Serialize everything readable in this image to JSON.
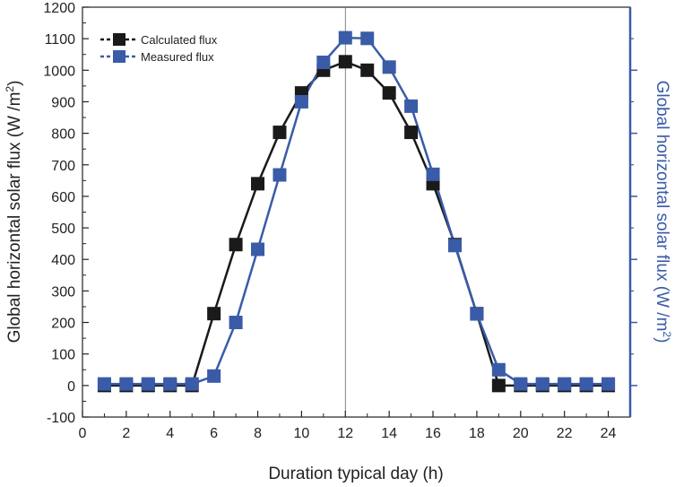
{
  "chart_data": {
    "type": "line",
    "title": "",
    "xlabel": "Duration typical day (h)",
    "ylabel": "Global horizontal solar flux (W /m",
    "ylabel_sup": "2",
    "ylabel_close": ")",
    "y2label": "Global horizontal solar flux (W /m",
    "y2label_sup": "2",
    "y2label_close": ")",
    "xlim": [
      0,
      25
    ],
    "ylim": [
      -100,
      1200
    ],
    "x_ticks": [
      "0",
      "2",
      "4",
      "6",
      "8",
      "10",
      "12",
      "14",
      "16",
      "18",
      "20",
      "22",
      "24"
    ],
    "y_ticks": [
      "-100",
      "0",
      "100",
      "200",
      "300",
      "400",
      "500",
      "600",
      "700",
      "800",
      "900",
      "1000",
      "1100",
      "1200"
    ],
    "reference_line_x": 12,
    "legend_position": "top-left",
    "x": [
      1,
      2,
      3,
      4,
      5,
      6,
      7,
      8,
      9,
      10,
      11,
      12,
      13,
      14,
      15,
      16,
      17,
      18,
      19,
      20,
      21,
      22,
      23,
      24
    ],
    "series": [
      {
        "name": "Calculated flux",
        "color": "#1a1a1a",
        "values": [
          0,
          0,
          0,
          0,
          0,
          228,
          447,
          640,
          803,
          928,
          1000,
          1027,
          1000,
          928,
          803,
          640,
          447,
          228,
          0,
          0,
          0,
          0,
          0,
          0
        ]
      },
      {
        "name": "Measured flux",
        "color": "#3a5ba8",
        "values": [
          5,
          5,
          5,
          5,
          5,
          30,
          200,
          432,
          668,
          900,
          1025,
          1103,
          1101,
          1010,
          886,
          670,
          444,
          227,
          50,
          5,
          5,
          5,
          5,
          5
        ]
      }
    ]
  }
}
